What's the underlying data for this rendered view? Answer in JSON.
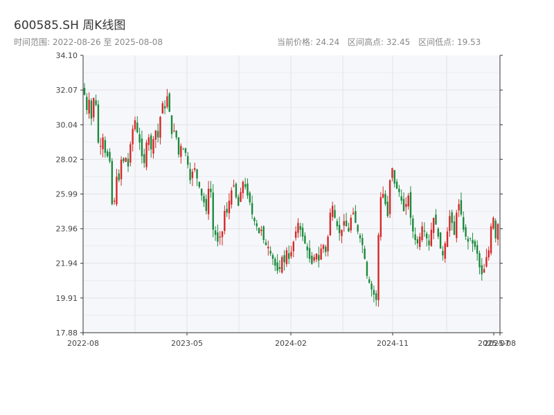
{
  "header": {
    "title": "600585.SH 周K线图",
    "range_text": "时间范围: 2022-08-26 至 2025-08-08",
    "current_price": "当前价格: 24.24",
    "range_high": "区间高点: 32.45",
    "range_low": "区间低点: 19.53"
  },
  "colors": {
    "up": "#d62728",
    "down": "#1a8a3c",
    "axis": "#333333",
    "grid": "#e3e3e8",
    "plot_bg": "#f6f7fa"
  },
  "chart_data": {
    "type": "candlestick",
    "title": "600585.SH 周K线图",
    "x_range": [
      "2022-08-26",
      "2025-08-08"
    ],
    "ylim": [
      17.88,
      34.1
    ],
    "yticks": [
      "17.88",
      "19.91",
      "21.94",
      "23.96",
      "25.99",
      "28.02",
      "30.04",
      "32.07",
      "34.10"
    ],
    "xticks": [
      "2022-08",
      "2023-05",
      "2024-02",
      "2024-11",
      "2025-07",
      "2025-08"
    ],
    "grid": true,
    "closes": [
      31.8,
      30.9,
      31.5,
      30.4,
      31.6,
      31.2,
      29.0,
      28.8,
      29.3,
      28.4,
      28.2,
      27.9,
      25.4,
      25.6,
      27.0,
      26.8,
      28.0,
      27.9,
      28.1,
      27.6,
      28.9,
      29.8,
      30.3,
      29.6,
      29.0,
      28.2,
      27.8,
      29.0,
      29.3,
      28.6,
      29.2,
      29.7,
      29.3,
      30.5,
      31.3,
      31.0,
      31.7,
      30.8,
      29.5,
      29.7,
      29.3,
      28.3,
      28.8,
      28.6,
      28.4,
      27.7,
      26.8,
      27.3,
      27.5,
      26.9,
      26.4,
      25.9,
      25.5,
      25.0,
      26.3,
      26.1,
      23.9,
      23.6,
      23.2,
      23.5,
      23.8,
      25.0,
      24.9,
      25.6,
      26.2,
      26.5,
      25.8,
      25.3,
      26.1,
      26.7,
      26.4,
      25.9,
      25.5,
      24.8,
      24.4,
      24.1,
      23.7,
      23.9,
      23.3,
      23.0,
      22.9,
      22.5,
      22.2,
      21.8,
      21.5,
      21.6,
      22.3,
      22.0,
      22.7,
      22.2,
      22.6,
      23.2,
      23.8,
      24.3,
      23.9,
      23.5,
      23.1,
      22.7,
      22.2,
      21.9,
      22.3,
      22.5,
      22.1,
      22.8,
      23.0,
      22.6,
      23.5,
      24.9,
      25.3,
      24.6,
      24.1,
      23.7,
      23.9,
      24.4,
      24.1,
      23.8,
      24.6,
      24.9,
      24.3,
      23.8,
      23.4,
      23.0,
      22.2,
      21.2,
      20.8,
      20.4,
      20.1,
      19.8,
      23.6,
      25.8,
      26.0,
      25.4,
      24.7,
      26.8,
      27.5,
      26.6,
      26.3,
      26.1,
      25.6,
      25.0,
      25.4,
      25.9,
      24.6,
      23.8,
      23.3,
      23.1,
      23.5,
      24.1,
      23.8,
      23.4,
      23.0,
      23.9,
      24.6,
      24.2,
      23.5,
      22.8,
      22.4,
      23.1,
      23.8,
      24.7,
      24.3,
      23.6,
      24.9,
      25.4,
      24.8,
      23.9,
      23.5,
      23.2,
      23.4,
      23.1,
      22.9,
      22.5,
      21.7,
      21.3,
      21.6,
      22.3,
      22.7,
      24.1,
      24.6,
      23.4,
      24.24
    ],
    "volatility_note": ""
  }
}
